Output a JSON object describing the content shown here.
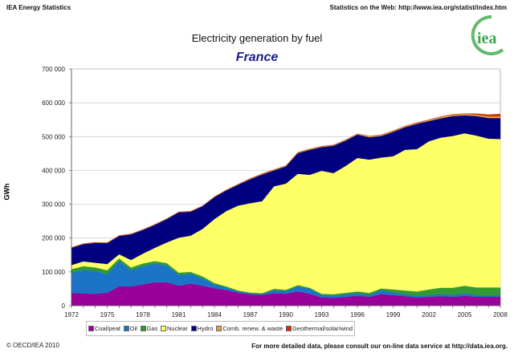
{
  "header": {
    "left": "IEA Energy Statistics",
    "right": "Statistics on the Web: http://www.iea.org/statist/index.htm"
  },
  "footer": {
    "left": "© OECD/IEA 2010",
    "right": "For more detailed data, please consult our on-line data service at http://data.iea.org."
  },
  "logo": {
    "text": "iea",
    "color": "#3aa84a"
  },
  "chart_data": {
    "type": "area",
    "stacked": true,
    "title": "Electricity generation by fuel",
    "subtitle": "France",
    "ylabel": "GWh",
    "xlabel": "",
    "ylim": [
      0,
      700000
    ],
    "yticks": [
      "0",
      "100 000",
      "200 000",
      "300 000",
      "400 000",
      "500 000",
      "600 000",
      "700 000"
    ],
    "xticks": [
      "1972",
      "1975",
      "1978",
      "1981",
      "1984",
      "1987",
      "1990",
      "1993",
      "1996",
      "1999",
      "2002",
      "2005",
      "2008"
    ],
    "grid": true,
    "legend": "bottom",
    "x": [
      1972,
      1973,
      1974,
      1975,
      1976,
      1977,
      1978,
      1979,
      1980,
      1981,
      1982,
      1983,
      1984,
      1985,
      1986,
      1987,
      1988,
      1989,
      1990,
      1991,
      1992,
      1993,
      1994,
      1995,
      1996,
      1997,
      1998,
      1999,
      2000,
      2001,
      2002,
      2003,
      2004,
      2005,
      2006,
      2007,
      2008
    ],
    "series": [
      {
        "name": "Coal/peat",
        "color": "#990099",
        "values": [
          38000,
          36000,
          35000,
          38000,
          57000,
          57000,
          63000,
          69000,
          69000,
          59000,
          65000,
          59000,
          51000,
          46000,
          38000,
          34000,
          32000,
          37000,
          35000,
          42000,
          35000,
          24000,
          23000,
          26000,
          29000,
          26000,
          34000,
          31000,
          28000,
          24000,
          26000,
          28000,
          26000,
          29000,
          26000,
          26000,
          26000
        ]
      },
      {
        "name": "Oil",
        "color": "#1c74c8",
        "values": [
          59000,
          70000,
          68000,
          55000,
          75000,
          48000,
          54000,
          55000,
          50000,
          32000,
          29000,
          22000,
          12000,
          8000,
          4000,
          3000,
          3000,
          9000,
          8000,
          15000,
          15000,
          8000,
          7000,
          8000,
          8000,
          6000,
          12000,
          8000,
          6000,
          5000,
          5000,
          6000,
          6000,
          8000,
          5000,
          5000,
          5000
        ]
      },
      {
        "name": "Gas",
        "color": "#339933",
        "values": [
          11000,
          11000,
          10000,
          12000,
          8000,
          8000,
          8000,
          8000,
          7000,
          7000,
          6000,
          6000,
          4000,
          3000,
          3000,
          2000,
          2000,
          4000,
          4000,
          4000,
          3000,
          3000,
          4000,
          4000,
          5000,
          6000,
          5000,
          9000,
          11000,
          13000,
          17000,
          19000,
          21000,
          22000,
          23000,
          23000,
          23000
        ]
      },
      {
        "name": "Nuclear",
        "color": "#ffff66",
        "values": [
          12000,
          14000,
          14000,
          18000,
          12000,
          22000,
          29000,
          39000,
          61000,
          103000,
          107000,
          140000,
          189000,
          223000,
          251000,
          264000,
          272000,
          303000,
          314000,
          329000,
          334000,
          364000,
          358000,
          375000,
          395000,
          394000,
          387000,
          394000,
          416000,
          421000,
          438000,
          444000,
          449000,
          451000,
          449000,
          440000,
          439000
        ]
      },
      {
        "name": "Hydro",
        "color": "#000080",
        "values": [
          51000,
          51000,
          59000,
          62000,
          54000,
          76000,
          70000,
          68000,
          69000,
          75000,
          71000,
          67000,
          65000,
          61000,
          62000,
          71000,
          79000,
          47000,
          51000,
          61000,
          74000,
          70000,
          81000,
          75000,
          69000,
          66000,
          64000,
          72000,
          67000,
          75000,
          60000,
          57000,
          59000,
          53000,
          58000,
          61000,
          62000
        ]
      },
      {
        "name": "Comb. renew. & waste",
        "color": "#e0a040",
        "values": [
          1000,
          1000,
          1000,
          1000,
          1000,
          1000,
          1000,
          1000,
          1000,
          1000,
          1000,
          1000,
          1000,
          1000,
          1000,
          2000,
          2000,
          2000,
          2000,
          2000,
          2000,
          2000,
          2000,
          2000,
          2000,
          3000,
          3000,
          3000,
          3000,
          3000,
          3000,
          4000,
          4000,
          4000,
          4000,
          5000,
          5000
        ]
      },
      {
        "name": "Geothermal/solar/wind",
        "color": "#cc3300",
        "values": [
          500,
          500,
          500,
          500,
          500,
          500,
          500,
          500,
          500,
          500,
          500,
          500,
          500,
          500,
          500,
          500,
          500,
          500,
          500,
          500,
          500,
          500,
          500,
          500,
          500,
          500,
          500,
          500,
          500,
          500,
          1000,
          1000,
          1000,
          1000,
          3000,
          5000,
          7000
        ]
      }
    ]
  }
}
